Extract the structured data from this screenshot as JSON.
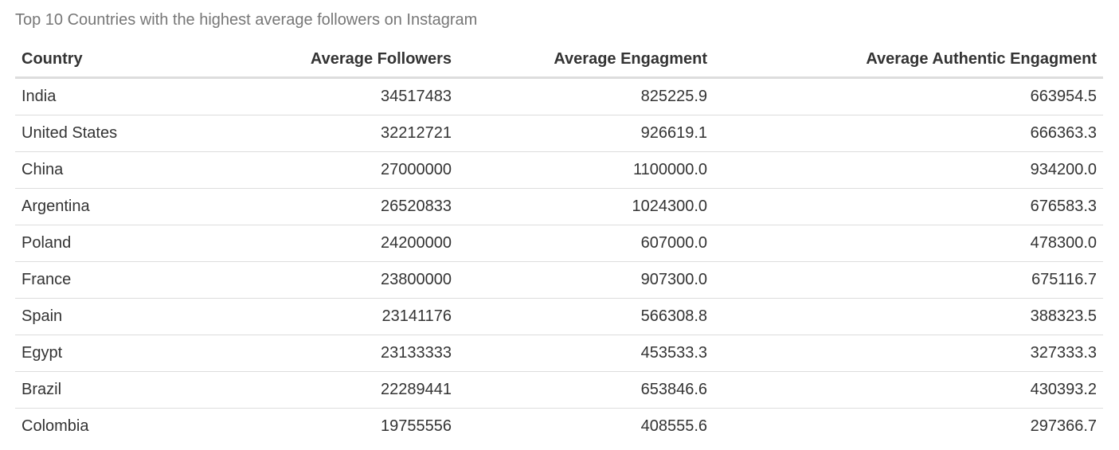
{
  "chart_data": {
    "type": "table",
    "title": "Top 10 Countries with the highest average followers on Instagram",
    "columns": [
      "Country",
      "Average Followers",
      "Average Engagment",
      "Average Authentic Engagment"
    ],
    "rows": [
      [
        "India",
        "34517483",
        "825225.9",
        "663954.5"
      ],
      [
        "United States",
        "32212721",
        "926619.1",
        "666363.3"
      ],
      [
        "China",
        "27000000",
        "1100000.0",
        "934200.0"
      ],
      [
        "Argentina",
        "26520833",
        "1024300.0",
        "676583.3"
      ],
      [
        "Poland",
        "24200000",
        "607000.0",
        "478300.0"
      ],
      [
        "France",
        "23800000",
        "907300.0",
        "675116.7"
      ],
      [
        "Spain",
        "23141176",
        "566308.8",
        "388323.5"
      ],
      [
        "Egypt",
        "23133333",
        "453533.3",
        "327333.3"
      ],
      [
        "Brazil",
        "22289441",
        "653846.6",
        "430393.2"
      ],
      [
        "Colombia",
        "19755556",
        "408555.6",
        "297366.7"
      ]
    ]
  }
}
